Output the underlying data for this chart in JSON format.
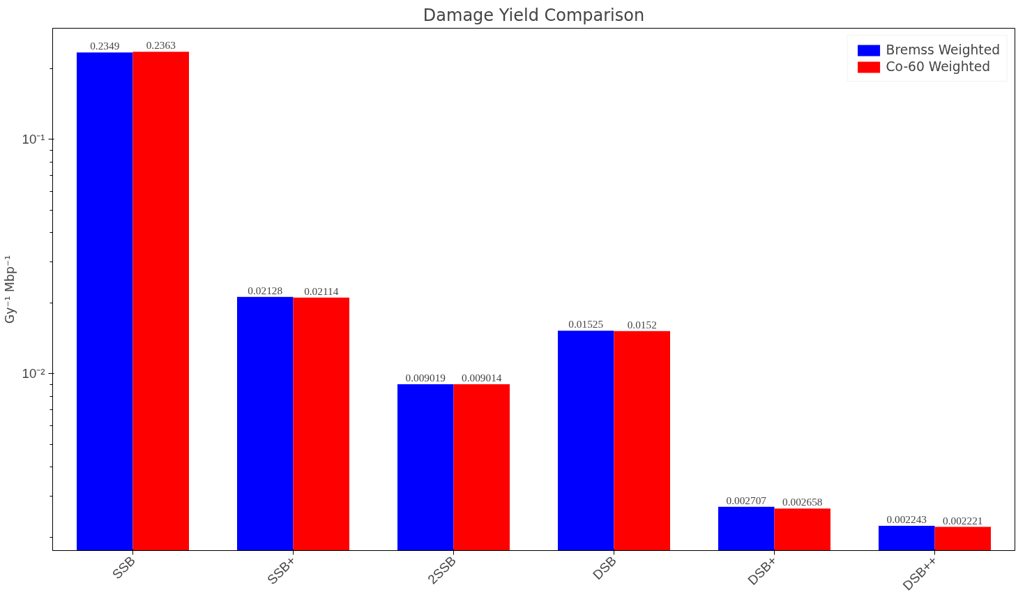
{
  "chart_data": {
    "type": "bar",
    "title": "Damage Yield Comparison",
    "ylabel": "Gy⁻¹ Mbp⁻¹",
    "categories": [
      "SSB",
      "SSB+",
      "2SSB",
      "DSB",
      "DSB+",
      "DSB++"
    ],
    "series": [
      {
        "name": "Bremss Weighted",
        "color": "#0000ff",
        "values": [
          0.2349,
          0.02128,
          0.009019,
          0.01525,
          0.002707,
          0.002243
        ]
      },
      {
        "name": "Co-60 Weighted",
        "color": "#ff0000",
        "values": [
          0.2363,
          0.02114,
          0.009014,
          0.0152,
          0.002658,
          0.002221
        ]
      }
    ],
    "log": true,
    "ylim": [
      0.00176,
      0.298
    ],
    "yticks": [
      {
        "value": 0.01,
        "label": "10⁻²"
      },
      {
        "value": 0.1,
        "label": "10⁻¹"
      }
    ],
    "data_labels": true,
    "grid": false,
    "legend": "top right"
  }
}
